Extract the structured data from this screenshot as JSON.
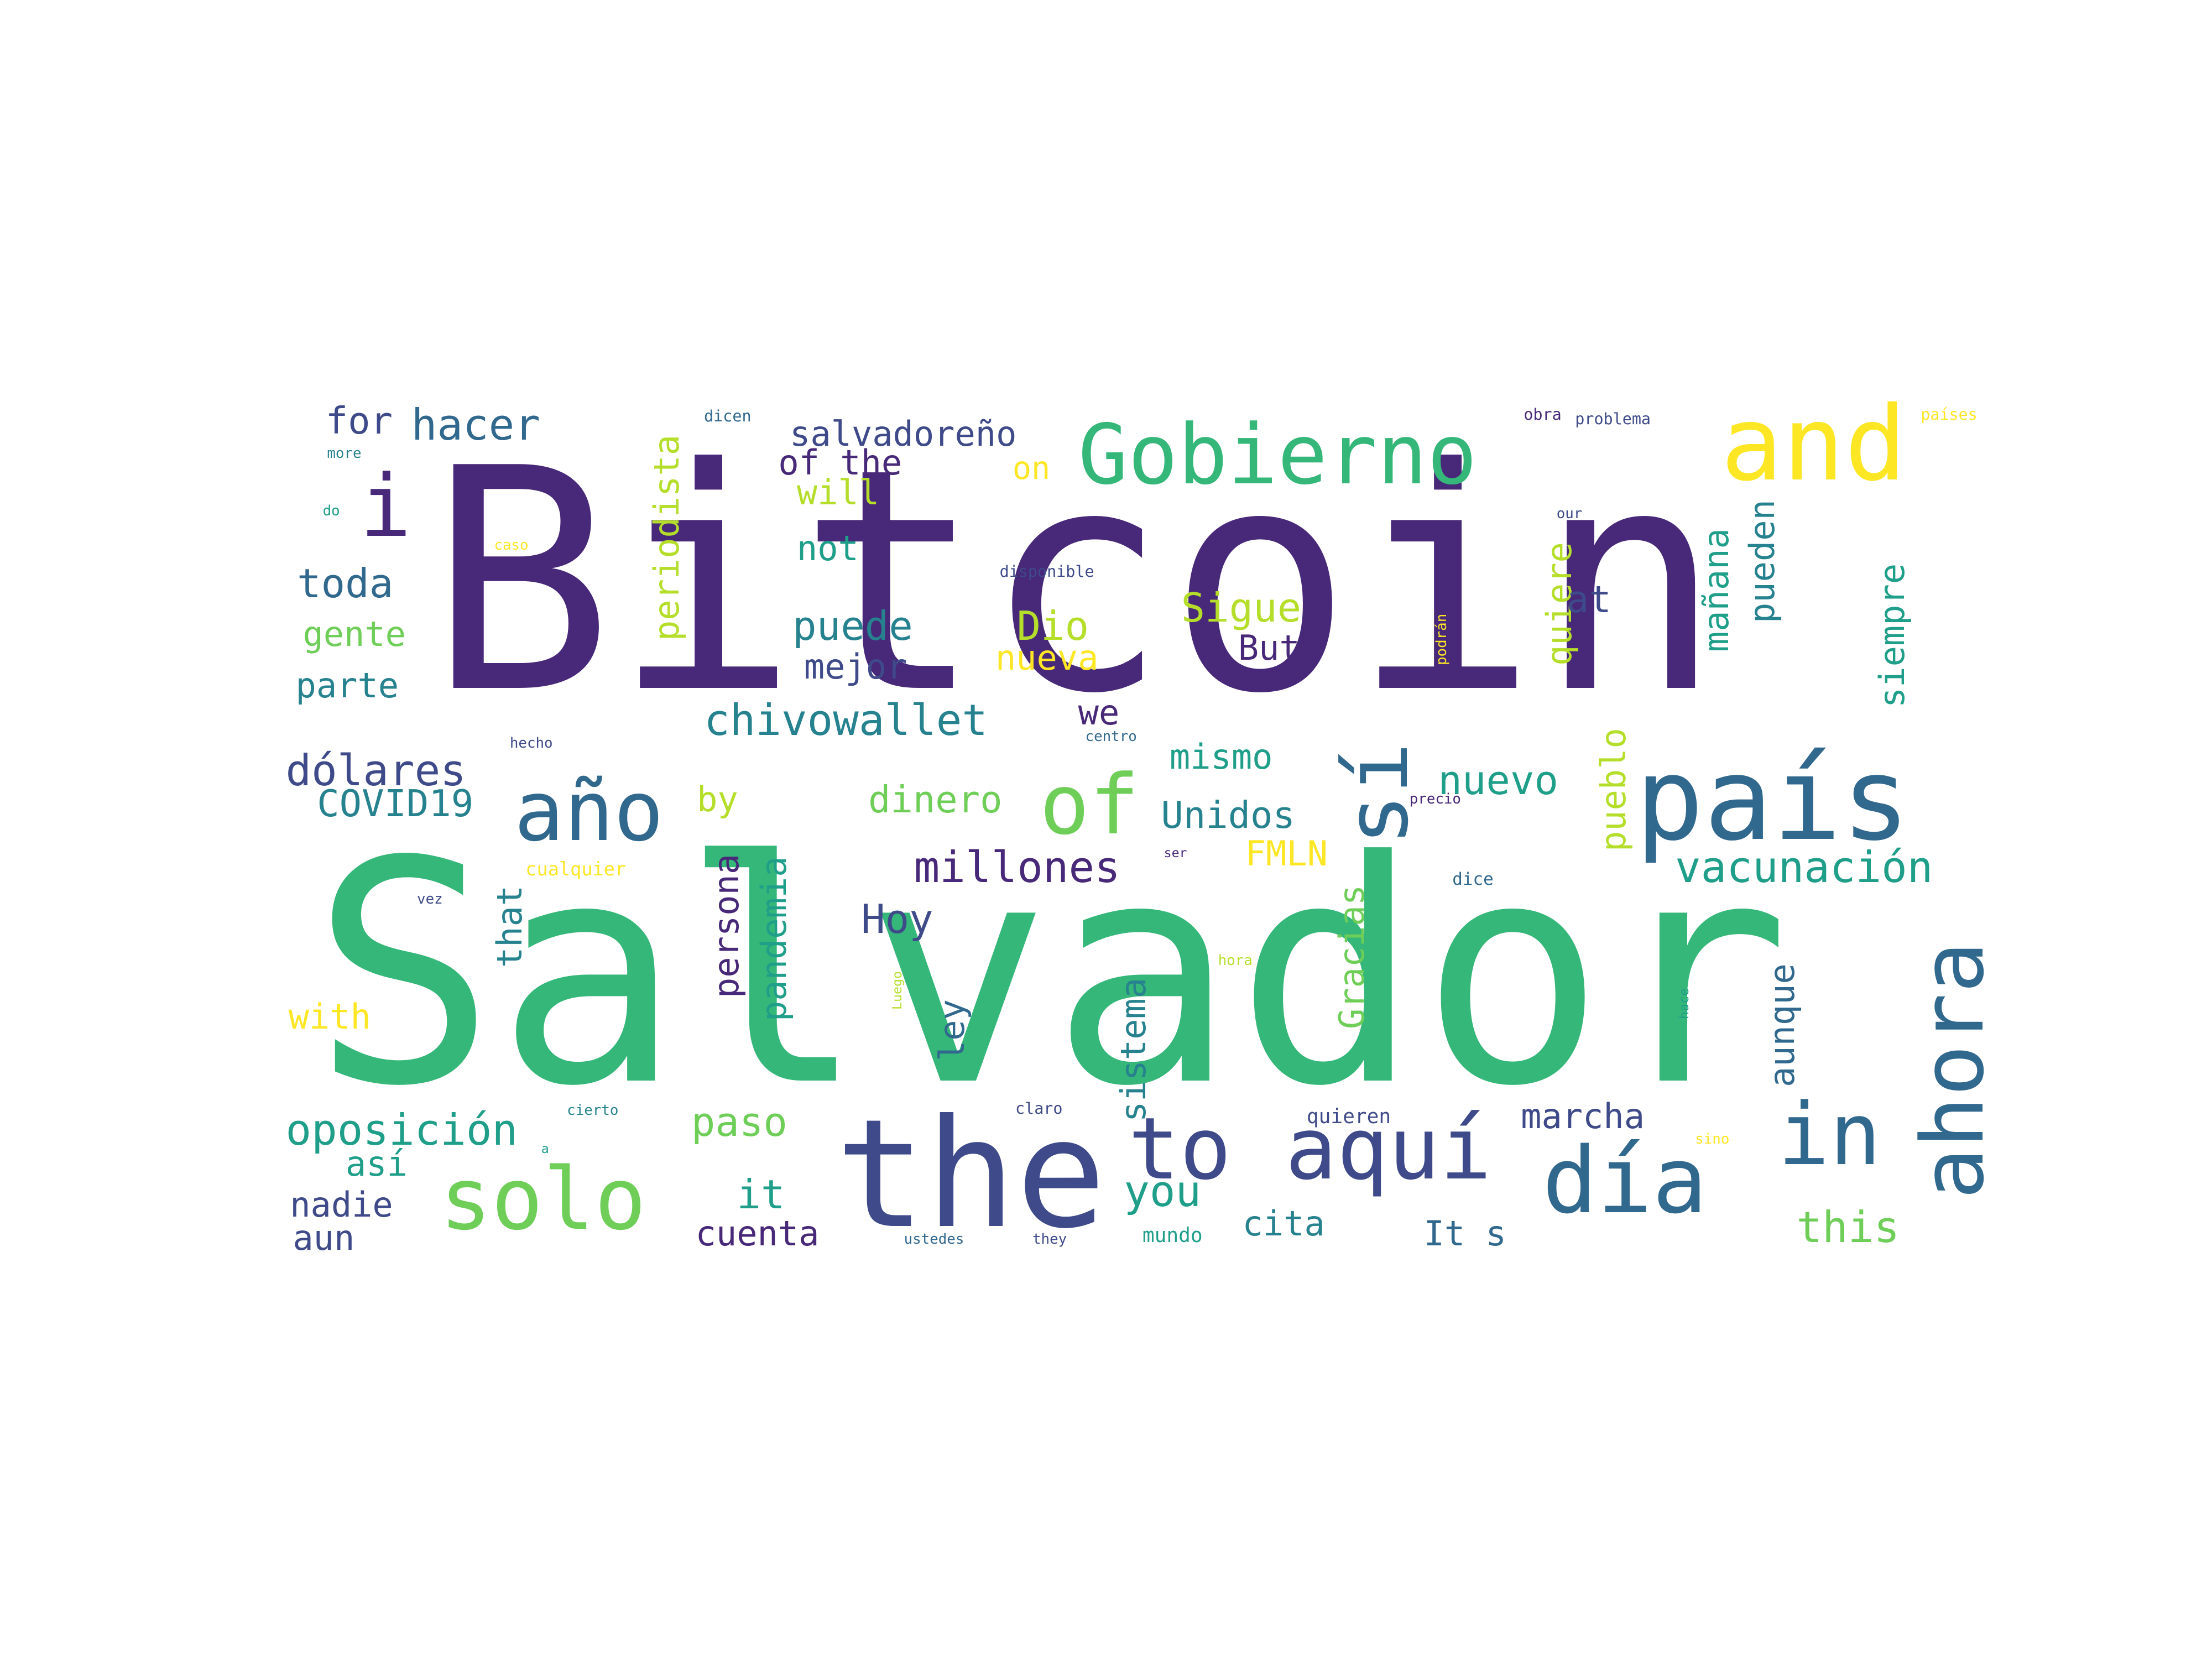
{
  "colors": {
    "background": "#ffffff",
    "dark_purple": "#482878",
    "indigo": "#3e4a89",
    "blue": "#31688e",
    "teal": "#26828e",
    "sea": "#1f9e89",
    "green": "#35b779",
    "light_green": "#6ece58",
    "lime": "#b5de2b",
    "yellow": "#fde725"
  },
  "words": [
    {
      "text": "Bitcoin",
      "color": "dark_purple"
    },
    {
      "text": "Salvador",
      "color": "green"
    },
    {
      "text": "the",
      "color": "indigo"
    },
    {
      "text": "país",
      "color": "blue"
    },
    {
      "text": "Gobierno",
      "color": "green"
    },
    {
      "text": "and",
      "color": "yellow"
    },
    {
      "text": "año",
      "color": "blue"
    },
    {
      "text": "of",
      "color": "light_green"
    },
    {
      "text": "sí",
      "color": "blue"
    },
    {
      "text": "solo",
      "color": "light_green"
    },
    {
      "text": "to",
      "color": "indigo"
    },
    {
      "text": "aquí",
      "color": "indigo"
    },
    {
      "text": "día",
      "color": "blue"
    },
    {
      "text": "in",
      "color": "blue"
    },
    {
      "text": "ahora",
      "color": "blue"
    },
    {
      "text": "i",
      "color": "dark_purple"
    },
    {
      "text": "hacer",
      "color": "blue"
    },
    {
      "text": "for",
      "color": "indigo"
    },
    {
      "text": "salvadoreño",
      "color": "indigo"
    },
    {
      "text": "of the",
      "color": "dark_purple"
    },
    {
      "text": "will",
      "color": "lime"
    },
    {
      "text": "on",
      "color": "yellow"
    },
    {
      "text": "periodista",
      "color": "lime"
    },
    {
      "text": "toda",
      "color": "blue"
    },
    {
      "text": "gente",
      "color": "light_green"
    },
    {
      "text": "parte",
      "color": "teal"
    },
    {
      "text": "not",
      "color": "sea"
    },
    {
      "text": "puede",
      "color": "teal"
    },
    {
      "text": "mejor",
      "color": "indigo"
    },
    {
      "text": "Dio",
      "color": "lime"
    },
    {
      "text": "nueva",
      "color": "yellow"
    },
    {
      "text": "Sigue",
      "color": "lime"
    },
    {
      "text": "But",
      "color": "dark_purple"
    },
    {
      "text": "quiere",
      "color": "lime"
    },
    {
      "text": "at",
      "color": "indigo"
    },
    {
      "text": "mañana",
      "color": "sea"
    },
    {
      "text": "pueden",
      "color": "teal"
    },
    {
      "text": "siempre",
      "color": "sea"
    },
    {
      "text": "we",
      "color": "dark_purple"
    },
    {
      "text": "dólares",
      "color": "indigo"
    },
    {
      "text": "COVID19",
      "color": "teal"
    },
    {
      "text": "chivowallet",
      "color": "teal"
    },
    {
      "text": "mismo",
      "color": "sea"
    },
    {
      "text": "nuevo",
      "color": "sea"
    },
    {
      "text": "by",
      "color": "lime"
    },
    {
      "text": "dinero",
      "color": "light_green"
    },
    {
      "text": "Unidos",
      "color": "teal"
    },
    {
      "text": "pueblo",
      "color": "lime"
    },
    {
      "text": "FMLN",
      "color": "yellow"
    },
    {
      "text": "millones",
      "color": "dark_purple"
    },
    {
      "text": "vacunación",
      "color": "sea"
    },
    {
      "text": "Hoy",
      "color": "indigo"
    },
    {
      "text": "that",
      "color": "teal"
    },
    {
      "text": "persona",
      "color": "dark_purple"
    },
    {
      "text": "pandemia",
      "color": "sea"
    },
    {
      "text": "with",
      "color": "yellow"
    },
    {
      "text": "ley",
      "color": "blue"
    },
    {
      "text": "sistema",
      "color": "teal"
    },
    {
      "text": "Gracias",
      "color": "light_green"
    },
    {
      "text": "aunque",
      "color": "blue"
    },
    {
      "text": "oposición",
      "color": "sea"
    },
    {
      "text": "paso",
      "color": "light_green"
    },
    {
      "text": "así",
      "color": "sea"
    },
    {
      "text": "marcha",
      "color": "indigo"
    },
    {
      "text": "it",
      "color": "sea"
    },
    {
      "text": "you",
      "color": "sea"
    },
    {
      "text": "nadie",
      "color": "indigo"
    },
    {
      "text": "aun",
      "color": "indigo"
    },
    {
      "text": "cuenta",
      "color": "dark_purple"
    },
    {
      "text": "cita",
      "color": "teal"
    },
    {
      "text": "It s",
      "color": "blue"
    },
    {
      "text": "this",
      "color": "light_green"
    },
    {
      "text": "quieren",
      "color": "indigo"
    },
    {
      "text": "dicen",
      "color": "blue"
    },
    {
      "text": "obra",
      "color": "dark_purple"
    },
    {
      "text": "problema",
      "color": "indigo"
    },
    {
      "text": "países",
      "color": "yellow"
    },
    {
      "text": "more",
      "color": "teal"
    },
    {
      "text": "do",
      "color": "sea"
    },
    {
      "text": "caso",
      "color": "yellow"
    },
    {
      "text": "disponible",
      "color": "indigo"
    },
    {
      "text": "our",
      "color": "indigo"
    },
    {
      "text": "podrán",
      "color": "yellow"
    },
    {
      "text": "hecho",
      "color": "indigo"
    },
    {
      "text": "centro",
      "color": "blue"
    },
    {
      "text": "precio",
      "color": "dark_purple"
    },
    {
      "text": "cualquier",
      "color": "yellow"
    },
    {
      "text": "ser",
      "color": "dark_purple"
    },
    {
      "text": "dice",
      "color": "blue"
    },
    {
      "text": "vez",
      "color": "indigo"
    },
    {
      "text": "hora",
      "color": "lime"
    },
    {
      "text": "Luego",
      "color": "lime"
    },
    {
      "text": "hace",
      "color": "sea"
    },
    {
      "text": "cierto",
      "color": "teal"
    },
    {
      "text": "claro",
      "color": "indigo"
    },
    {
      "text": "sino",
      "color": "yellow"
    },
    {
      "text": "ustedes",
      "color": "blue"
    },
    {
      "text": "they",
      "color": "indigo"
    },
    {
      "text": "mundo",
      "color": "sea"
    },
    {
      "text": "a",
      "color": "sea"
    }
  ]
}
